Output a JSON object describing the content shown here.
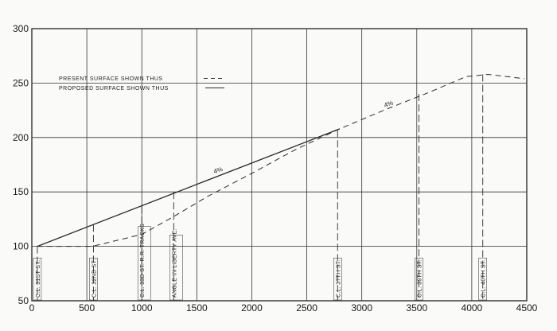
{
  "chart_data": {
    "type": "line",
    "xlim": [
      0,
      4500
    ],
    "ylim": [
      50,
      300
    ],
    "x_ticks": [
      "0",
      "500",
      "1000",
      "1500",
      "2000",
      "2500",
      "3000",
      "3500",
      "4000",
      "4500"
    ],
    "y_ticks": [
      "50",
      "100",
      "150",
      "200",
      "250",
      "300"
    ],
    "grid": true,
    "legend_position": "top-left",
    "series": [
      {
        "name": "PRESENT SURFACE SHOWN THUS",
        "style": "dashed",
        "x": [
          50,
          550,
          1000,
          1300,
          1600,
          2000,
          2400,
          2800,
          3200,
          3600,
          3950,
          4150,
          4480
        ],
        "y": [
          100,
          100,
          111,
          128,
          146,
          167,
          189,
          208,
          225,
          241,
          256,
          258,
          254
        ]
      },
      {
        "name": "PROPOSED SURFACE SHOWN THUS",
        "style": "solid",
        "x": [
          50,
          2800
        ],
        "y": [
          100,
          208
        ]
      }
    ],
    "street_markers": [
      {
        "label": "C.L. 31ST ST.",
        "x": 50,
        "y_top": 100
      },
      {
        "label": "C.L. 32ND ST.",
        "x": 560,
        "y_top": 120
      },
      {
        "label": "C.L. 33D ST. R.R. TRACKS",
        "x": 1000,
        "y_top": 137
      },
      {
        "label": "ANGLE IN LIBERTY AVE.",
        "x": 1290,
        "y_top": 150
      },
      {
        "label": "C.L. 37TH ST.",
        "x": 2780,
        "y_top": 207
      },
      {
        "label": "C.L. 39TH ST.",
        "x": 3520,
        "y_top": 240
      },
      {
        "label": "C.L. 40TH ST.",
        "x": 4100,
        "y_top": 258
      }
    ],
    "annotations": [
      {
        "text": "4%",
        "x": 1700,
        "y": 168
      },
      {
        "text": "4%",
        "x": 3250,
        "y": 229
      }
    ]
  },
  "colors": {
    "background": "#fafaf8",
    "grid": "#333333",
    "line": "#2a2a2a"
  }
}
